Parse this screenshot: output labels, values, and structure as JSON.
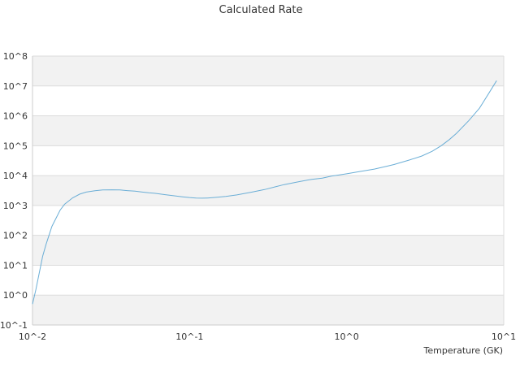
{
  "chart_data": {
    "type": "line",
    "title": "Calculated Rate",
    "xlabel": "Temperature (GK)",
    "ylabel": "",
    "x_scale": "log",
    "y_scale": "log",
    "xlim": [
      0.01,
      10
    ],
    "ylim": [
      0.1,
      100000000
    ],
    "x_tick_labels": [
      "10^-2",
      "10^-1",
      "10^0",
      "10^1"
    ],
    "y_tick_labels": [
      "10^-1",
      "10^0",
      "10^1",
      "10^2",
      "10^3",
      "10^4",
      "10^5",
      "10^6",
      "10^7",
      "10^8"
    ],
    "grid": "alternating horizontal bands",
    "series_color": "#6baed6",
    "band_color": "#f2f2f2",
    "series": [
      {
        "x": [
          0.01,
          0.0105,
          0.011,
          0.0116,
          0.0122,
          0.0133,
          0.015,
          0.016,
          0.018,
          0.02,
          0.022,
          0.025,
          0.028,
          0.032,
          0.036,
          0.04,
          0.045,
          0.05,
          0.055,
          0.06,
          0.07,
          0.08,
          0.09,
          0.1,
          0.11,
          0.12,
          0.13,
          0.15,
          0.17,
          0.2,
          0.25,
          0.3,
          0.35,
          0.4,
          0.5,
          0.6,
          0.7,
          0.8,
          0.9,
          1.0,
          1.2,
          1.5,
          1.8,
          2.0,
          2.5,
          3.0,
          3.5,
          4.0,
          4.5,
          5.0,
          6.0,
          7.0,
          8.0,
          9.0
        ],
        "y": [
          0.5,
          1.5,
          5,
          20,
          50,
          200,
          700,
          1100,
          1800,
          2400,
          2800,
          3100,
          3300,
          3350,
          3300,
          3150,
          3000,
          2800,
          2650,
          2550,
          2300,
          2100,
          1950,
          1850,
          1780,
          1760,
          1780,
          1880,
          2000,
          2250,
          2800,
          3400,
          4200,
          5000,
          6300,
          7500,
          8200,
          9600,
          10500,
          11500,
          13500,
          16500,
          20500,
          23500,
          33000,
          45000,
          65000,
          100000,
          160000,
          260000,
          700000,
          1800000,
          5500000,
          15000000
        ]
      }
    ]
  }
}
